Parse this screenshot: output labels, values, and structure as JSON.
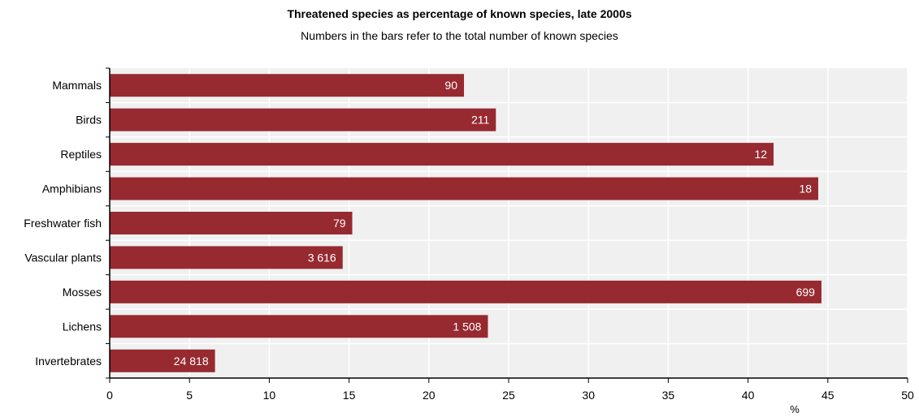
{
  "chart_data": {
    "type": "bar",
    "orientation": "horizontal",
    "title": "Threatened species as percentage of known species, late 2000s",
    "subtitle": "Numbers in the bars refer to the total number of known species",
    "xlabel": "%",
    "ylabel": "",
    "xlim": [
      0,
      50
    ],
    "xticks": [
      0,
      5,
      10,
      15,
      20,
      25,
      30,
      35,
      40,
      45,
      50
    ],
    "grid": true,
    "bar_color": "#962a30",
    "plot_background": "#f0f0f0",
    "categories": [
      "Mammals",
      "Birds",
      "Reptiles",
      "Amphibians",
      "Freshwater fish",
      "Vascular plants",
      "Mosses",
      "Lichens",
      "Invertebrates"
    ],
    "values": [
      22.2,
      24.2,
      41.6,
      44.4,
      15.2,
      14.6,
      44.6,
      23.7,
      6.6
    ],
    "bar_labels": [
      "90",
      "211",
      "12",
      "18",
      "79",
      "3 616",
      "699",
      "1 508",
      "24 818"
    ]
  }
}
